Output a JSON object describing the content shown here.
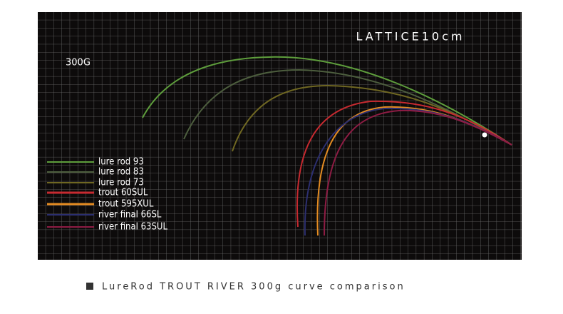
{
  "panel": {
    "title": "LATTICE10cm",
    "load": "300G"
  },
  "legend": [
    {
      "name": "lure rod 93",
      "color": "#5e9e3c"
    },
    {
      "name": "lure rod 83",
      "color": "#4d5e3e"
    },
    {
      "name": "lure rod 73",
      "color": "#6f6722"
    },
    {
      "name": "trout 60SUL",
      "color": "#c72a30"
    },
    {
      "name": "trout 595XUL",
      "color": "#e58c22"
    },
    {
      "name": "river final 66SL",
      "color": "#2c2f70"
    },
    {
      "name": "river final 63SUL",
      "color": "#8e1c44"
    }
  ],
  "caption": "LureRod TROUT RIVER 300g curve comparison"
}
